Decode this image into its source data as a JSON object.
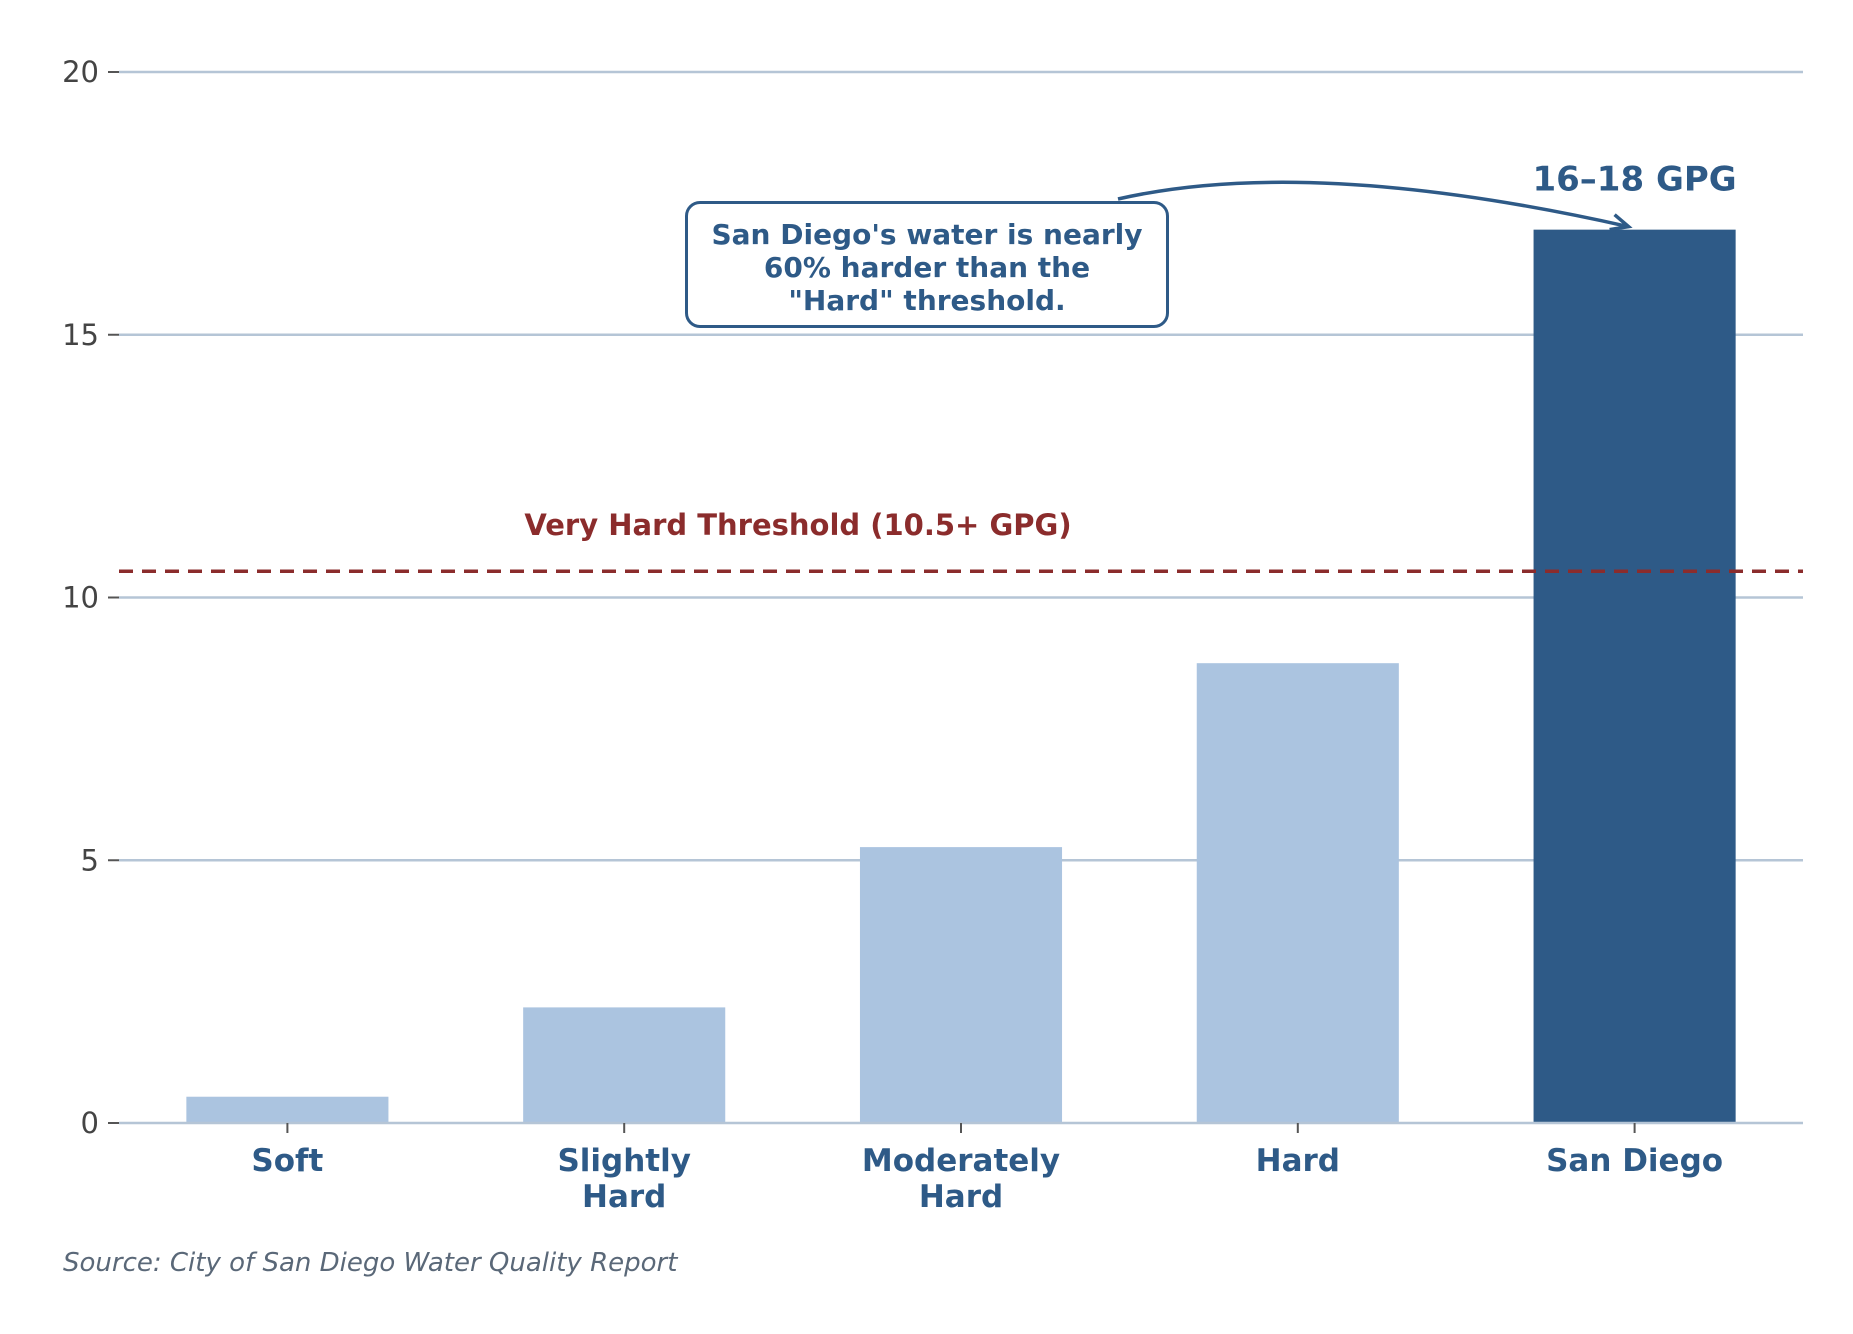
{
  "chart_data": {
    "type": "bar",
    "categories": [
      "Soft",
      "Slightly\nHard",
      "Moderately\nHard",
      "Hard",
      "San Diego"
    ],
    "values": [
      0.5,
      2.2,
      5.25,
      8.75,
      17
    ],
    "ylim": [
      0,
      20
    ],
    "yticks": [
      0,
      5,
      10,
      15,
      20
    ],
    "grid": "horizontal",
    "highlight_category": "San Diego",
    "threshold": {
      "value": 10.5,
      "label": "Very Hard Threshold (10.5+ GPG)"
    },
    "annotations": [
      {
        "target": "San Diego",
        "text": "16–18 GPG"
      },
      {
        "target": "San Diego",
        "text": "San Diego's water is nearly\n60% harder than the\n\"Hard\" threshold."
      }
    ],
    "colors": {
      "bar": "#abc4e0",
      "highlight": "#2e5a87",
      "threshold": "#8b2c2c",
      "grid": "#b5c5d6",
      "tick_text": "#444444",
      "category_text": "#2e5a87"
    }
  },
  "source": "Source: City of San Diego Water Quality Report"
}
